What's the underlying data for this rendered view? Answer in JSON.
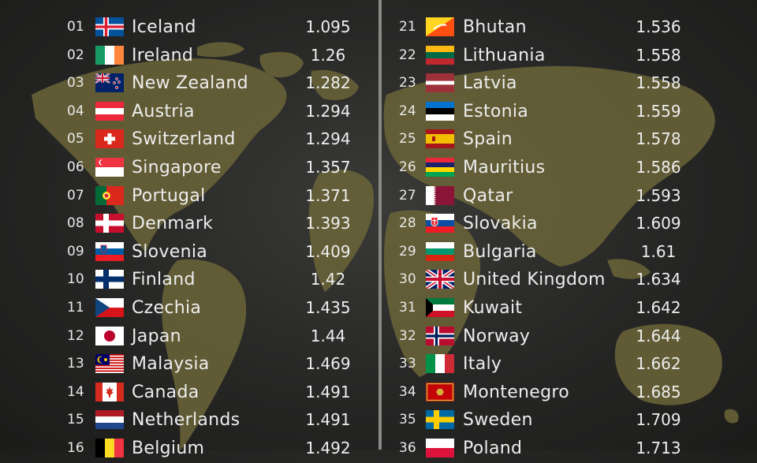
{
  "left_column": [
    {
      "rank": "01",
      "country": "Iceland",
      "value": "1.095",
      "flag": "iceland-flag-icon"
    },
    {
      "rank": "02",
      "country": "Ireland",
      "value": "1.26",
      "flag": "ireland-flag-icon"
    },
    {
      "rank": "03",
      "country": "New Zealand",
      "value": "1.282",
      "flag": "new-zealand-flag-icon"
    },
    {
      "rank": "04",
      "country": "Austria",
      "value": "1.294",
      "flag": "austria-flag-icon"
    },
    {
      "rank": "05",
      "country": "Switzerland",
      "value": "1.294",
      "flag": "switzerland-flag-icon"
    },
    {
      "rank": "06",
      "country": "Singapore",
      "value": "1.357",
      "flag": "singapore-flag-icon"
    },
    {
      "rank": "07",
      "country": "Portugal",
      "value": "1.371",
      "flag": "portugal-flag-icon"
    },
    {
      "rank": "08",
      "country": "Denmark",
      "value": "1.393",
      "flag": "denmark-flag-icon"
    },
    {
      "rank": "09",
      "country": "Slovenia",
      "value": "1.409",
      "flag": "slovenia-flag-icon"
    },
    {
      "rank": "10",
      "country": "Finland",
      "value": "1.42",
      "flag": "finland-flag-icon"
    },
    {
      "rank": "11",
      "country": "Czechia",
      "value": "1.435",
      "flag": "czechia-flag-icon"
    },
    {
      "rank": "12",
      "country": "Japan",
      "value": "1.44",
      "flag": "japan-flag-icon"
    },
    {
      "rank": "13",
      "country": "Malaysia",
      "value": "1.469",
      "flag": "malaysia-flag-icon"
    },
    {
      "rank": "14",
      "country": "Canada",
      "value": "1.491",
      "flag": "canada-flag-icon"
    },
    {
      "rank": "15",
      "country": "Netherlands",
      "value": "1.491",
      "flag": "netherlands-flag-icon"
    },
    {
      "rank": "16",
      "country": "Belgium",
      "value": "1.492",
      "flag": "belgium-flag-icon"
    }
  ],
  "right_column": [
    {
      "rank": "21",
      "country": "Bhutan",
      "value": "1.536",
      "flag": "bhutan-flag-icon"
    },
    {
      "rank": "22",
      "country": "Lithuania",
      "value": "1.558",
      "flag": "lithuania-flag-icon"
    },
    {
      "rank": "23",
      "country": "Latvia",
      "value": "1.558",
      "flag": "latvia-flag-icon"
    },
    {
      "rank": "24",
      "country": "Estonia",
      "value": "1.559",
      "flag": "estonia-flag-icon"
    },
    {
      "rank": "25",
      "country": "Spain",
      "value": "1.578",
      "flag": "spain-flag-icon"
    },
    {
      "rank": "26",
      "country": "Mauritius",
      "value": "1.586",
      "flag": "mauritius-flag-icon"
    },
    {
      "rank": "27",
      "country": "Qatar",
      "value": "1.593",
      "flag": "qatar-flag-icon"
    },
    {
      "rank": "28",
      "country": "Slovakia",
      "value": "1.609",
      "flag": "slovakia-flag-icon"
    },
    {
      "rank": "29",
      "country": "Bulgaria",
      "value": "1.61",
      "flag": "bulgaria-flag-icon"
    },
    {
      "rank": "30",
      "country": "United Kingdom",
      "value": "1.634",
      "flag": "united-kingdom-flag-icon"
    },
    {
      "rank": "31",
      "country": "Kuwait",
      "value": "1.642",
      "flag": "kuwait-flag-icon"
    },
    {
      "rank": "32",
      "country": "Norway",
      "value": "1.644",
      "flag": "norway-flag-icon"
    },
    {
      "rank": "33",
      "country": "Italy",
      "value": "1.662",
      "flag": "italy-flag-icon"
    },
    {
      "rank": "34",
      "country": "Montenegro",
      "value": "1.685",
      "flag": "montenegro-flag-icon"
    },
    {
      "rank": "35",
      "country": "Sweden",
      "value": "1.709",
      "flag": "sweden-flag-icon"
    },
    {
      "rank": "36",
      "country": "Poland",
      "value": "1.713",
      "flag": "poland-flag-icon"
    }
  ],
  "colors": {
    "background": "#262625",
    "map_land": "#6b6538",
    "divider": "#8a8a88",
    "text": "#ededed"
  }
}
